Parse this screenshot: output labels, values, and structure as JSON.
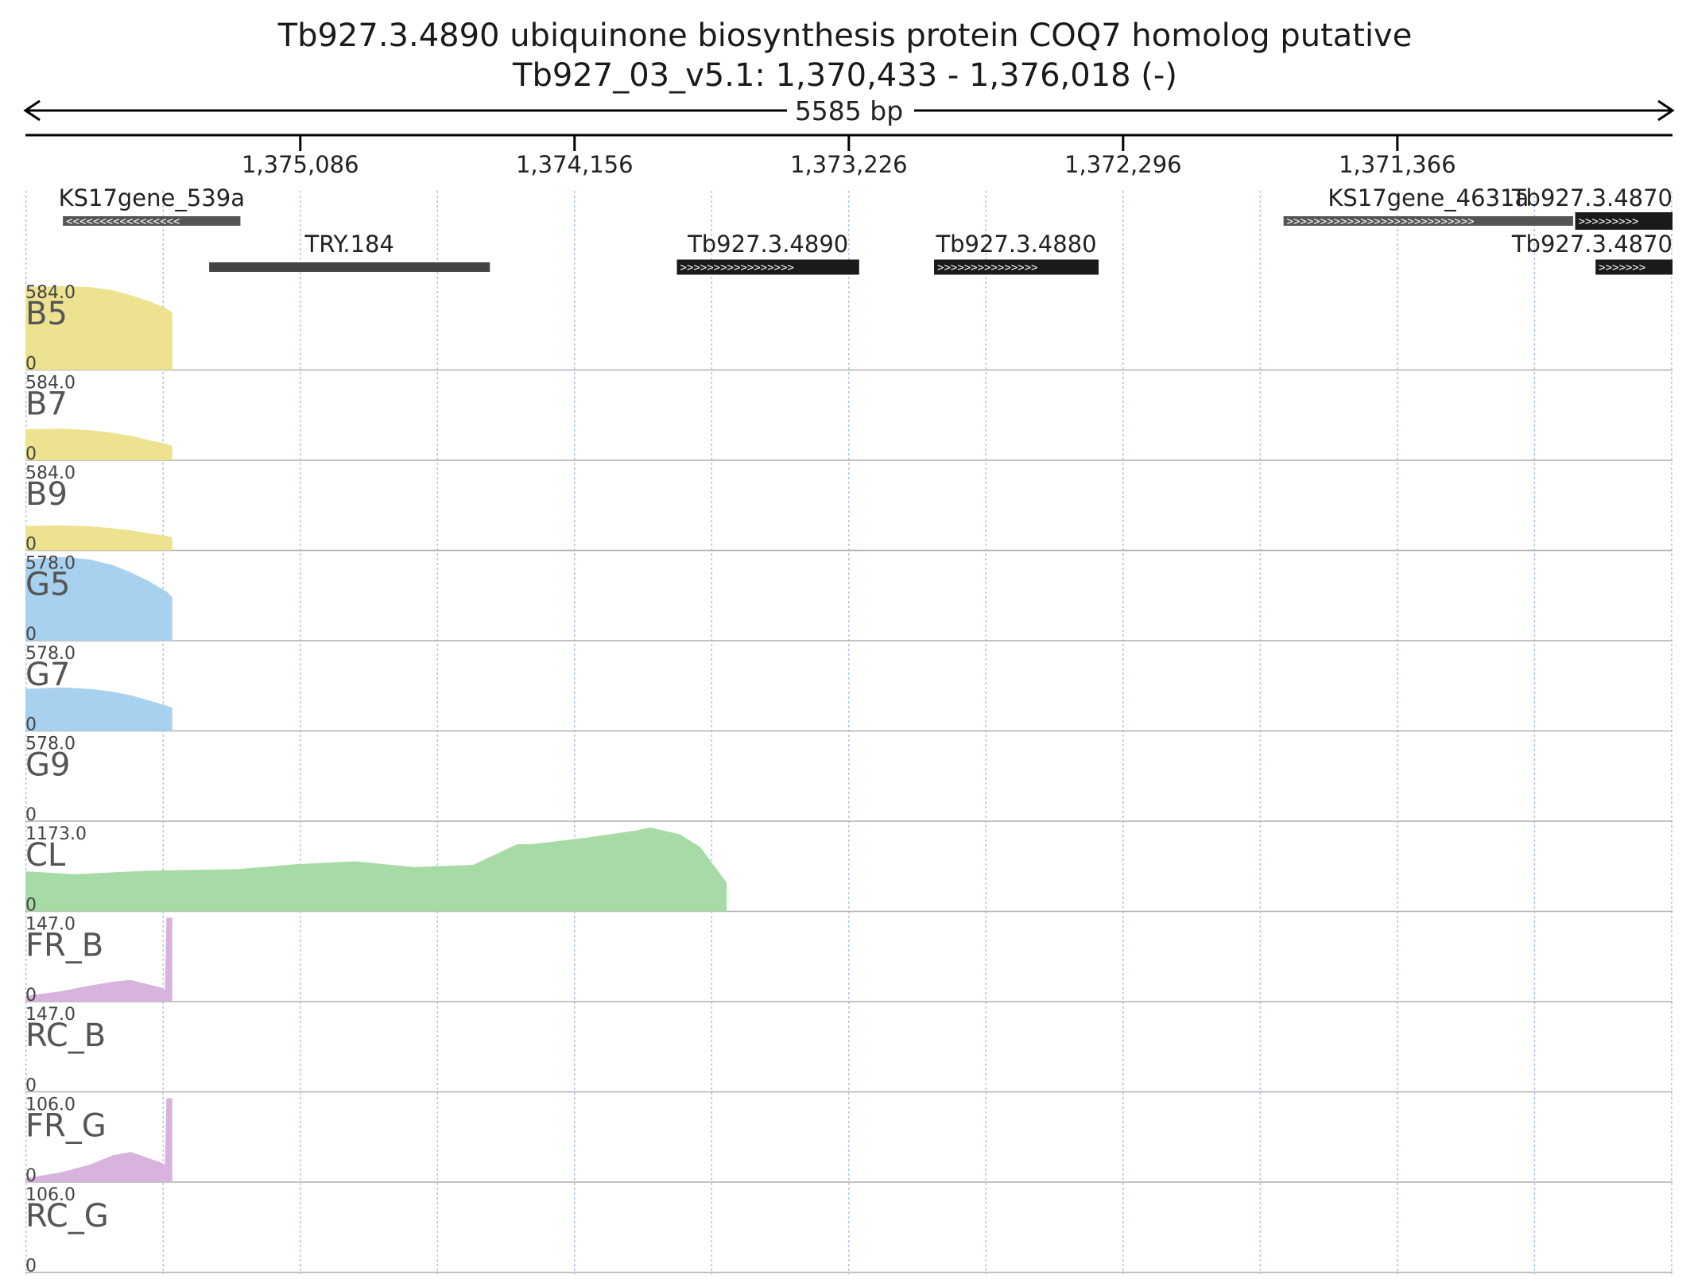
{
  "header": {
    "title": "Tb927.3.4890  ubiquinone biosynthesis protein COQ7 homolog  putative",
    "locus": "Tb927_03_v5.1: 1,370,433 - 1,376,018 (-)",
    "length_label": "5585 bp"
  },
  "chart_data": {
    "type": "area",
    "region": {
      "chrom": "Tb927_03_v5.1",
      "start": 1370433,
      "end": 1376018,
      "strand": "-"
    },
    "x_ticks": [
      {
        "pos": 1375086,
        "label": "1,375,086"
      },
      {
        "pos": 1374156,
        "label": "1,374,156"
      },
      {
        "pos": 1373226,
        "label": "1,373,226"
      },
      {
        "pos": 1372296,
        "label": "1,372,296"
      },
      {
        "pos": 1371366,
        "label": "1,371,366"
      }
    ],
    "grid": true,
    "genes": [
      {
        "name": "KS17gene_539a",
        "start": 1375289,
        "end": 1375891,
        "strand": "-",
        "style": "striped",
        "row": 0,
        "label_row": 0
      },
      {
        "name": "TRY.184",
        "start": 1374443,
        "end": 1375395,
        "strand": "none",
        "style": "plain",
        "row": 1,
        "label_row": 1
      },
      {
        "name": "Tb927.3.4890",
        "start": 1373191,
        "end": 1373809,
        "strand": "+",
        "style": "solid",
        "row": 1,
        "label_row": 1
      },
      {
        "name": "Tb927.3.4880",
        "start": 1372379,
        "end": 1372937,
        "strand": "+",
        "style": "solid",
        "row": 1,
        "label_row": 1
      },
      {
        "name": "KS17gene_4631a",
        "start": 1370770,
        "end": 1371752,
        "strand": "+",
        "style": "striped",
        "row": 0,
        "label_row": 0
      },
      {
        "name": "Tb927.3.4870",
        "start": 1370433,
        "end": 1370763,
        "strand": "+",
        "style": "solid",
        "row": 0,
        "label_row": 0
      },
      {
        "name": "Tb927.3.4870",
        "start": 1370433,
        "end": 1370694,
        "strand": "+",
        "style": "solid",
        "row": 1,
        "label_row": 1
      }
    ],
    "tracks": [
      {
        "name": "B5",
        "max": "584.0",
        "min": "0",
        "color": "#ede28f",
        "segments": [
          {
            "x": [
              1376018,
              1375896,
              1375800,
              1375720,
              1375660,
              1375600,
              1375540,
              1375520
            ],
            "y": [
              578,
              584,
              578,
              555,
              520,
              480,
              430,
              400
            ]
          }
        ]
      },
      {
        "name": "B7",
        "max": "584.0",
        "min": "0",
        "color": "#ede28f",
        "segments": [
          {
            "x": [
              1376018,
              1375896,
              1375800,
              1375720,
              1375660,
              1375600,
              1375540,
              1375520
            ],
            "y": [
              215,
              220,
              210,
              190,
              170,
              140,
              115,
              100
            ]
          }
        ]
      },
      {
        "name": "B9",
        "max": "584.0",
        "min": "0",
        "color": "#ede28f",
        "segments": [
          {
            "x": [
              1376018,
              1375896,
              1375800,
              1375720,
              1375660,
              1375600,
              1375540,
              1375520
            ],
            "y": [
              170,
              175,
              168,
              155,
              140,
              120,
              100,
              90
            ]
          }
        ]
      },
      {
        "name": "G5",
        "max": "578.0",
        "min": "0",
        "color": "#a8d1ef",
        "segments": [
          {
            "x": [
              1376018,
              1375896,
              1375800,
              1375720,
              1375660,
              1375600,
              1375540,
              1375520
            ],
            "y": [
              560,
              578,
              560,
              520,
              470,
              410,
              340,
              300
            ]
          }
        ]
      },
      {
        "name": "G7",
        "max": "578.0",
        "min": "0",
        "color": "#a8d1ef",
        "segments": [
          {
            "x": [
              1376018,
              1375896,
              1375800,
              1375720,
              1375660,
              1375600,
              1375540,
              1375520
            ],
            "y": [
              290,
              300,
              290,
              270,
              245,
              210,
              175,
              160
            ]
          }
        ]
      },
      {
        "name": "G9",
        "max": "578.0",
        "min": "0",
        "color": "#a8d1ef",
        "segments": []
      },
      {
        "name": "CL",
        "max": "1173.0",
        "min": "0",
        "color": "#a6dba6",
        "segments": [
          {
            "x": [
              1376018,
              1375850,
              1375600,
              1375300,
              1375100,
              1374900,
              1374700,
              1374500,
              1374350,
              1374300,
              1374100,
              1373950,
              1373900,
              1373800,
              1373730,
              1373685,
              1373640
            ],
            "y": [
              560,
              520,
              570,
              590,
              660,
              700,
              620,
              650,
              940,
              940,
              1040,
              1130,
              1173,
              1080,
              900,
              650,
              400
            ]
          }
        ]
      },
      {
        "name": "FR_B",
        "max": "147.0",
        "min": "0",
        "color": "#d7b3dd",
        "segments": [
          {
            "x": [
              1376018,
              1375900,
              1375800,
              1375720,
              1375660,
              1375600,
              1375560,
              1375545,
              1375540,
              1375520
            ],
            "y": [
              10,
              18,
              28,
              35,
              38,
              30,
              25,
              20,
              147,
              147
            ]
          }
        ]
      },
      {
        "name": "RC_B",
        "max": "147.0",
        "min": "0",
        "color": "#d7b3dd",
        "segments": []
      },
      {
        "name": "FR_G",
        "max": "106.0",
        "min": "0",
        "color": "#d7b3dd",
        "segments": [
          {
            "x": [
              1376018,
              1375900,
              1375800,
              1375720,
              1375660,
              1375600,
              1375560,
              1375545,
              1375540,
              1375520
            ],
            "y": [
              5,
              12,
              22,
              34,
              38,
              30,
              25,
              22,
              106,
              106
            ]
          }
        ]
      },
      {
        "name": "RC_G",
        "max": "106.0",
        "min": "0",
        "color": "#d7b3dd",
        "segments": []
      }
    ]
  }
}
